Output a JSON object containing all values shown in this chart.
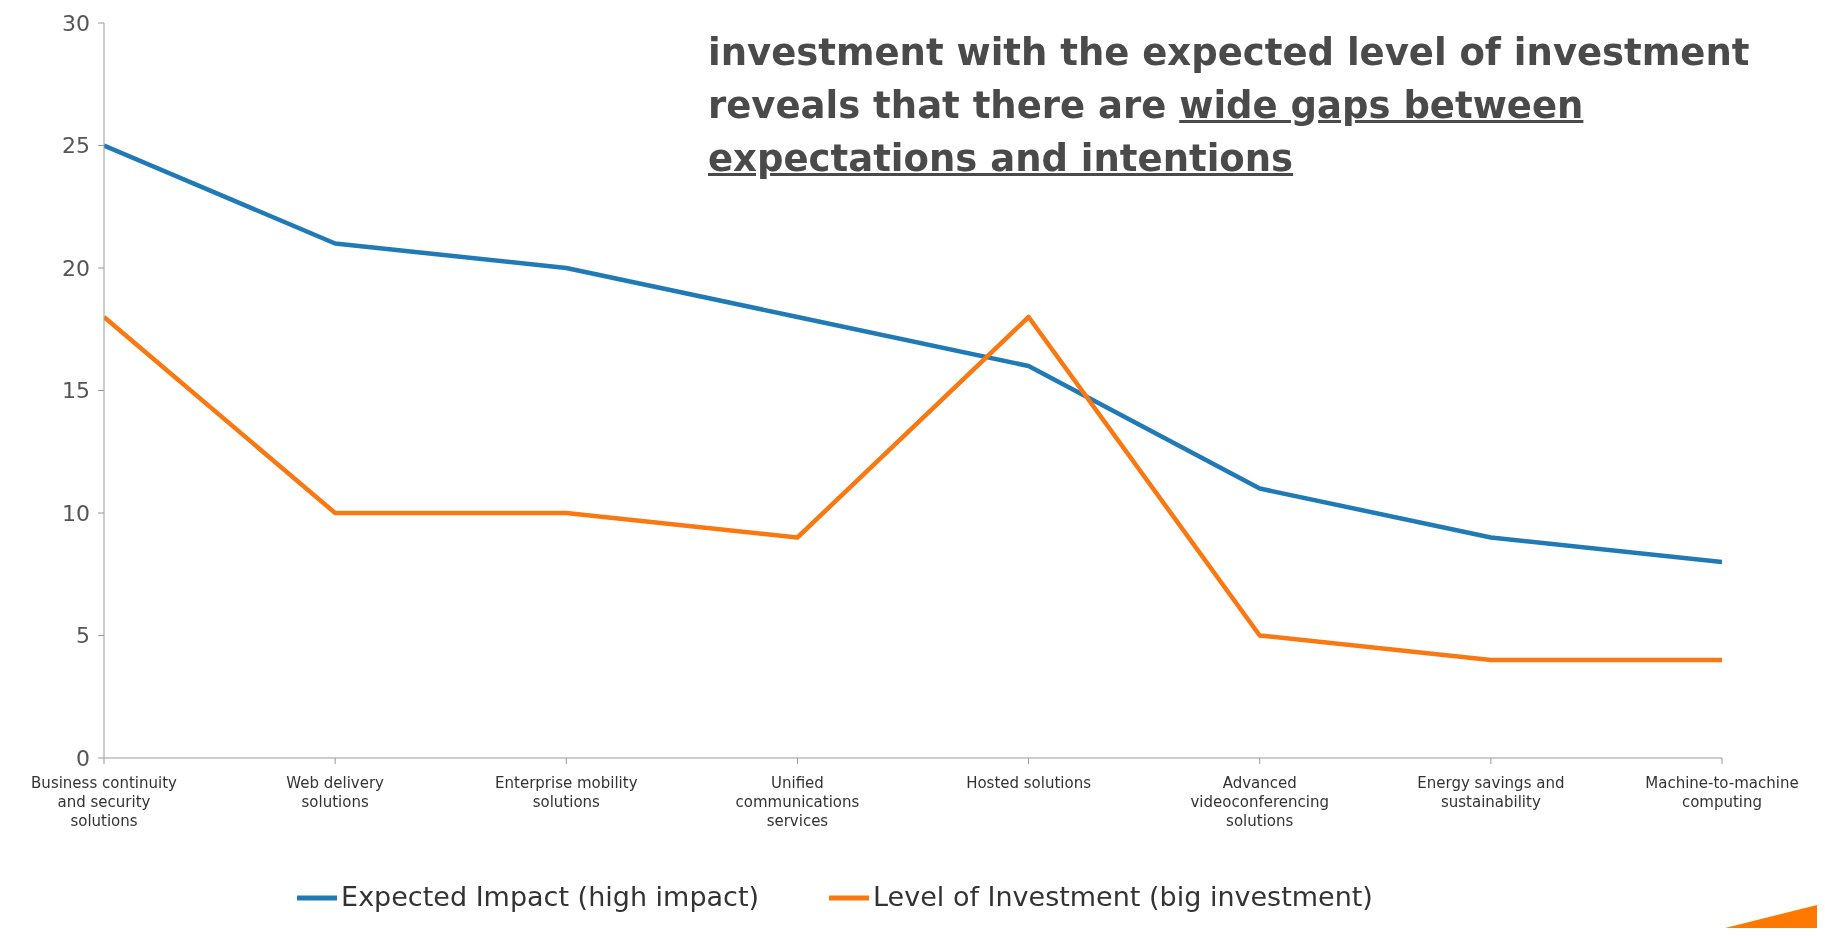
{
  "chart_data": {
    "type": "line",
    "categories": [
      "Business continuity and security solutions",
      "Web delivery solutions",
      "Enterprise mobility solutions",
      "Unified communications services",
      "Hosted solutions",
      "Advanced videoconferencing solutions",
      "Energy savings and sustainability",
      "Machine-to-machine computing"
    ],
    "series": [
      {
        "name": "Expected Impact (high impact)",
        "color": "#1f7ab6",
        "values": [
          25,
          21,
          20,
          18,
          16,
          11,
          9,
          8
        ]
      },
      {
        "name": "Level of Investment (big investment)",
        "color": "#fa7811",
        "values": [
          18,
          10,
          10,
          9,
          18,
          5,
          4,
          4
        ]
      }
    ],
    "ylim": [
      0,
      30
    ],
    "yticks": [
      0,
      5,
      10,
      15,
      20,
      25,
      30
    ],
    "grid": false,
    "legend": "bottom",
    "marker": "none",
    "line_style": "solid",
    "annotations": [
      "investment with the expected level of investment reveals that there are",
      "wide gaps between expectations and intentions"
    ]
  }
}
